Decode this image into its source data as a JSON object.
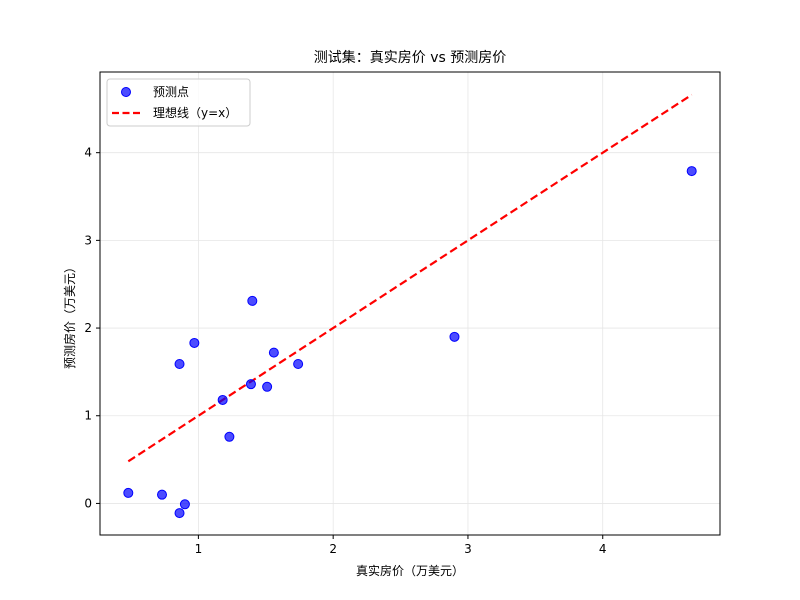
{
  "chart_data": {
    "type": "scatter",
    "title": "测试集：真实房价 vs 预测房价",
    "xlabel": "真实房价（万美元）",
    "ylabel": "预测房价（万美元）",
    "xlim": [
      0.27,
      4.87
    ],
    "ylim": [
      -0.36,
      4.92
    ],
    "x_ticks": [
      1,
      2,
      3,
      4
    ],
    "y_ticks": [
      0,
      1,
      2,
      3,
      4
    ],
    "grid": true,
    "legend_position": "top-left",
    "series": [
      {
        "name": "预测点",
        "kind": "scatter",
        "color": "#0000ff",
        "points": [
          {
            "x": 0.48,
            "y": 0.12
          },
          {
            "x": 0.73,
            "y": 0.1
          },
          {
            "x": 0.86,
            "y": 1.59
          },
          {
            "x": 0.86,
            "y": -0.11
          },
          {
            "x": 0.9,
            "y": -0.01
          },
          {
            "x": 0.97,
            "y": 1.83
          },
          {
            "x": 1.18,
            "y": 1.18
          },
          {
            "x": 1.23,
            "y": 0.76
          },
          {
            "x": 1.39,
            "y": 1.36
          },
          {
            "x": 1.4,
            "y": 2.31
          },
          {
            "x": 1.51,
            "y": 1.33
          },
          {
            "x": 1.56,
            "y": 1.72
          },
          {
            "x": 1.74,
            "y": 1.59
          },
          {
            "x": 2.9,
            "y": 1.9
          },
          {
            "x": 4.66,
            "y": 3.79
          }
        ]
      },
      {
        "name": "理想线（y=x）",
        "kind": "line",
        "color": "#ff0000",
        "style": "dashed",
        "points": [
          {
            "x": 0.48,
            "y": 0.48
          },
          {
            "x": 4.66,
            "y": 4.66
          }
        ]
      }
    ]
  }
}
